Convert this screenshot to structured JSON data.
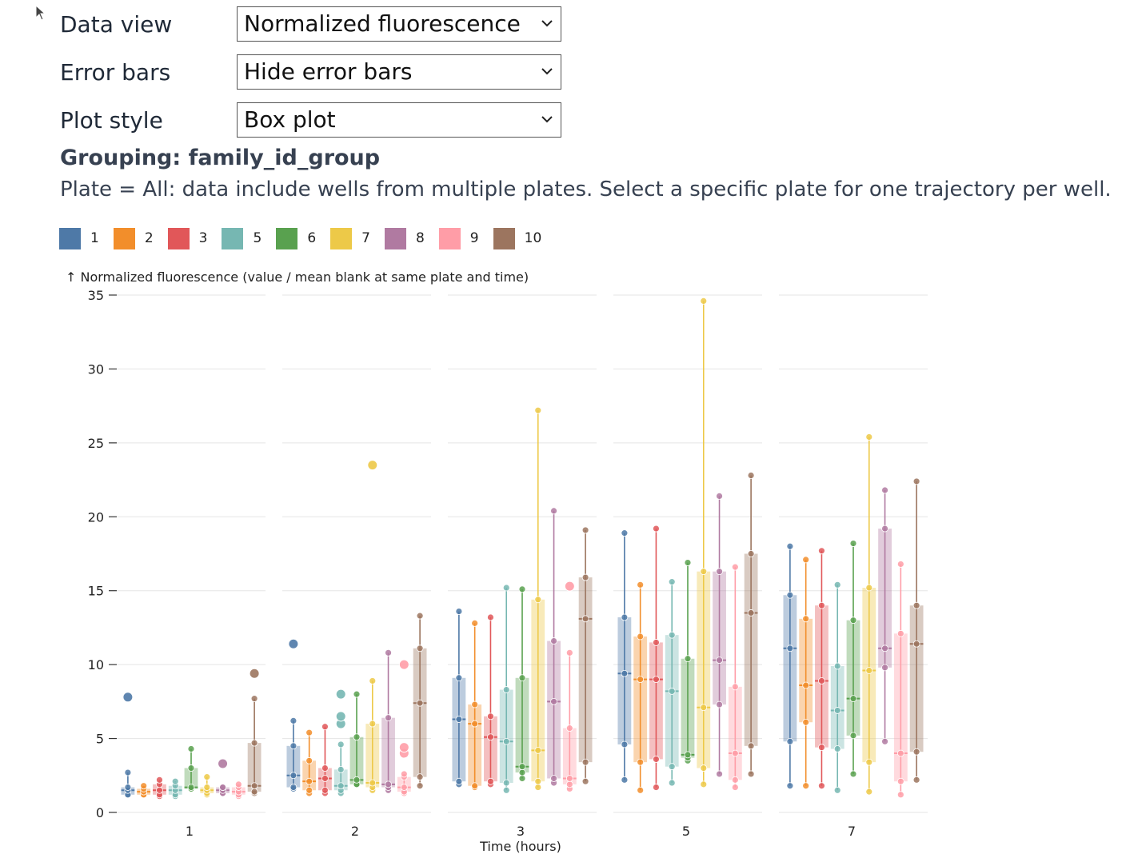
{
  "controls": [
    {
      "label": "Data view",
      "value": "Normalized fluorescence"
    },
    {
      "label": "Error bars",
      "value": "Hide error bars"
    },
    {
      "label": "Plot style",
      "value": "Box plot"
    }
  ],
  "grouping_title": "Grouping: family_id_group",
  "plate_note": "Plate = All: data include wells from multiple plates. Select a specific plate for one trajectory per well.",
  "colors": {
    "1": "#4e79a7",
    "2": "#f28e2b",
    "3": "#e15759",
    "5": "#76b7b2",
    "6": "#59a14f",
    "7": "#edc948",
    "8": "#b07aa1",
    "9": "#ff9da7",
    "10": "#9c755f"
  },
  "chart_data": {
    "type": "box",
    "ylabel": "↑ Normalized fluorescence (value / mean blank at same plate and time)",
    "xlabel": "Time (hours)",
    "ylim": [
      0,
      35
    ],
    "yticks": [
      0,
      5,
      10,
      15,
      20,
      25,
      30,
      35
    ],
    "facets": [
      "1",
      "2",
      "3",
      "5",
      "7"
    ],
    "groups": [
      "1",
      "2",
      "3",
      "5",
      "6",
      "7",
      "8",
      "9",
      "10"
    ],
    "boxes": {
      "1": [
        {
          "group": "1",
          "q1": 1.2,
          "median": 1.5,
          "q3": 1.7,
          "min": 1.2,
          "max": 2.7,
          "outliers": [
            7.8
          ]
        },
        {
          "group": "2",
          "q1": 1.2,
          "median": 1.4,
          "q3": 1.6,
          "min": 1.2,
          "max": 1.8,
          "outliers": []
        },
        {
          "group": "3",
          "q1": 1.2,
          "median": 1.5,
          "q3": 1.9,
          "min": 1.1,
          "max": 2.2,
          "outliers": []
        },
        {
          "group": "5",
          "q1": 1.2,
          "median": 1.5,
          "q3": 1.8,
          "min": 1.1,
          "max": 2.1,
          "outliers": []
        },
        {
          "group": "6",
          "q1": 1.6,
          "median": 1.7,
          "q3": 3.0,
          "min": 1.6,
          "max": 4.3,
          "outliers": []
        },
        {
          "group": "7",
          "q1": 1.3,
          "median": 1.5,
          "q3": 1.7,
          "min": 1.2,
          "max": 2.4,
          "outliers": []
        },
        {
          "group": "8",
          "q1": 1.3,
          "median": 1.5,
          "q3": 1.7,
          "min": 1.3,
          "max": 1.7,
          "outliers": [
            3.3
          ]
        },
        {
          "group": "9",
          "q1": 1.2,
          "median": 1.4,
          "q3": 1.7,
          "min": 1.1,
          "max": 1.9,
          "outliers": []
        },
        {
          "group": "10",
          "q1": 1.4,
          "median": 1.8,
          "q3": 4.7,
          "min": 1.3,
          "max": 7.7,
          "outliers": [
            9.4
          ]
        }
      ],
      "2": [
        {
          "group": "1",
          "q1": 1.7,
          "median": 2.5,
          "q3": 4.5,
          "min": 1.6,
          "max": 6.2,
          "outliers": [
            11.4
          ]
        },
        {
          "group": "2",
          "q1": 1.5,
          "median": 2.1,
          "q3": 3.5,
          "min": 1.3,
          "max": 5.4,
          "outliers": []
        },
        {
          "group": "3",
          "q1": 1.5,
          "median": 2.3,
          "q3": 3.0,
          "min": 1.3,
          "max": 5.8,
          "outliers": []
        },
        {
          "group": "5",
          "q1": 1.5,
          "median": 1.8,
          "q3": 2.9,
          "min": 1.3,
          "max": 4.6,
          "outliers": [
            6.0,
            6.5,
            8.0
          ]
        },
        {
          "group": "6",
          "q1": 1.9,
          "median": 2.2,
          "q3": 5.1,
          "min": 1.9,
          "max": 8.0,
          "outliers": []
        },
        {
          "group": "7",
          "q1": 1.7,
          "median": 2.0,
          "q3": 6.0,
          "min": 1.5,
          "max": 8.9,
          "outliers": [
            23.5
          ]
        },
        {
          "group": "8",
          "q1": 1.7,
          "median": 1.9,
          "q3": 6.4,
          "min": 1.5,
          "max": 10.8,
          "outliers": []
        },
        {
          "group": "9",
          "q1": 1.4,
          "median": 1.7,
          "q3": 2.4,
          "min": 1.3,
          "max": 2.6,
          "outliers": [
            4.0,
            4.4,
            10.0
          ]
        },
        {
          "group": "10",
          "q1": 2.4,
          "median": 7.4,
          "q3": 11.1,
          "min": 1.8,
          "max": 13.3,
          "outliers": []
        }
      ],
      "3": [
        {
          "group": "1",
          "q1": 2.1,
          "median": 6.3,
          "q3": 9.1,
          "min": 1.9,
          "max": 13.6,
          "outliers": []
        },
        {
          "group": "2",
          "q1": 1.8,
          "median": 6.0,
          "q3": 7.3,
          "min": 1.7,
          "max": 12.8,
          "outliers": []
        },
        {
          "group": "3",
          "q1": 2.1,
          "median": 5.1,
          "q3": 6.5,
          "min": 1.9,
          "max": 13.2,
          "outliers": []
        },
        {
          "group": "5",
          "q1": 2.0,
          "median": 4.8,
          "q3": 8.3,
          "min": 1.5,
          "max": 15.2,
          "outliers": []
        },
        {
          "group": "6",
          "q1": 2.7,
          "median": 3.1,
          "q3": 9.1,
          "min": 2.3,
          "max": 15.1,
          "outliers": []
        },
        {
          "group": "7",
          "q1": 2.1,
          "median": 4.2,
          "q3": 14.4,
          "min": 1.7,
          "max": 27.2,
          "outliers": []
        },
        {
          "group": "8",
          "q1": 2.3,
          "median": 7.5,
          "q3": 11.6,
          "min": 2.0,
          "max": 20.4,
          "outliers": []
        },
        {
          "group": "9",
          "q1": 1.9,
          "median": 2.3,
          "q3": 5.7,
          "min": 1.6,
          "max": 10.8,
          "outliers": [
            15.3
          ]
        },
        {
          "group": "10",
          "q1": 3.4,
          "median": 13.1,
          "q3": 15.9,
          "min": 2.1,
          "max": 19.1,
          "outliers": []
        }
      ],
      "5": [
        {
          "group": "1",
          "q1": 4.6,
          "median": 9.4,
          "q3": 13.2,
          "min": 2.2,
          "max": 18.9,
          "outliers": []
        },
        {
          "group": "2",
          "q1": 3.4,
          "median": 9.0,
          "q3": 11.9,
          "min": 1.5,
          "max": 15.4,
          "outliers": []
        },
        {
          "group": "3",
          "q1": 3.6,
          "median": 9.0,
          "q3": 11.5,
          "min": 1.7,
          "max": 19.2,
          "outliers": []
        },
        {
          "group": "5",
          "q1": 3.1,
          "median": 8.2,
          "q3": 12.0,
          "min": 2.0,
          "max": 15.6,
          "outliers": []
        },
        {
          "group": "6",
          "q1": 3.7,
          "median": 3.9,
          "q3": 10.4,
          "min": 3.5,
          "max": 16.9,
          "outliers": []
        },
        {
          "group": "7",
          "q1": 3.0,
          "median": 7.1,
          "q3": 16.3,
          "min": 1.9,
          "max": 34.6,
          "outliers": []
        },
        {
          "group": "8",
          "q1": 7.3,
          "median": 10.3,
          "q3": 16.3,
          "min": 2.6,
          "max": 21.4,
          "outliers": []
        },
        {
          "group": "9",
          "q1": 2.2,
          "median": 4.0,
          "q3": 8.5,
          "min": 1.7,
          "max": 16.6,
          "outliers": []
        },
        {
          "group": "10",
          "q1": 4.5,
          "median": 13.5,
          "q3": 17.5,
          "min": 2.6,
          "max": 22.8,
          "outliers": []
        }
      ],
      "7": [
        {
          "group": "1",
          "q1": 4.8,
          "median": 11.1,
          "q3": 14.7,
          "min": 1.8,
          "max": 18.0,
          "outliers": []
        },
        {
          "group": "2",
          "q1": 6.1,
          "median": 8.6,
          "q3": 13.1,
          "min": 1.8,
          "max": 17.1,
          "outliers": []
        },
        {
          "group": "3",
          "q1": 4.4,
          "median": 8.9,
          "q3": 14.0,
          "min": 1.8,
          "max": 17.7,
          "outliers": []
        },
        {
          "group": "5",
          "q1": 4.3,
          "median": 6.9,
          "q3": 9.9,
          "min": 1.5,
          "max": 15.4,
          "outliers": []
        },
        {
          "group": "6",
          "q1": 5.2,
          "median": 7.7,
          "q3": 13.0,
          "min": 2.6,
          "max": 18.2,
          "outliers": []
        },
        {
          "group": "7",
          "q1": 3.4,
          "median": 9.6,
          "q3": 15.2,
          "min": 1.4,
          "max": 25.4,
          "outliers": []
        },
        {
          "group": "8",
          "q1": 9.8,
          "median": 11.1,
          "q3": 19.2,
          "min": 4.8,
          "max": 21.8,
          "outliers": []
        },
        {
          "group": "9",
          "q1": 2.1,
          "median": 4.0,
          "q3": 12.1,
          "min": 1.2,
          "max": 16.8,
          "outliers": []
        },
        {
          "group": "10",
          "q1": 4.1,
          "median": 11.4,
          "q3": 14.0,
          "min": 2.2,
          "max": 22.4,
          "outliers": []
        }
      ]
    }
  }
}
